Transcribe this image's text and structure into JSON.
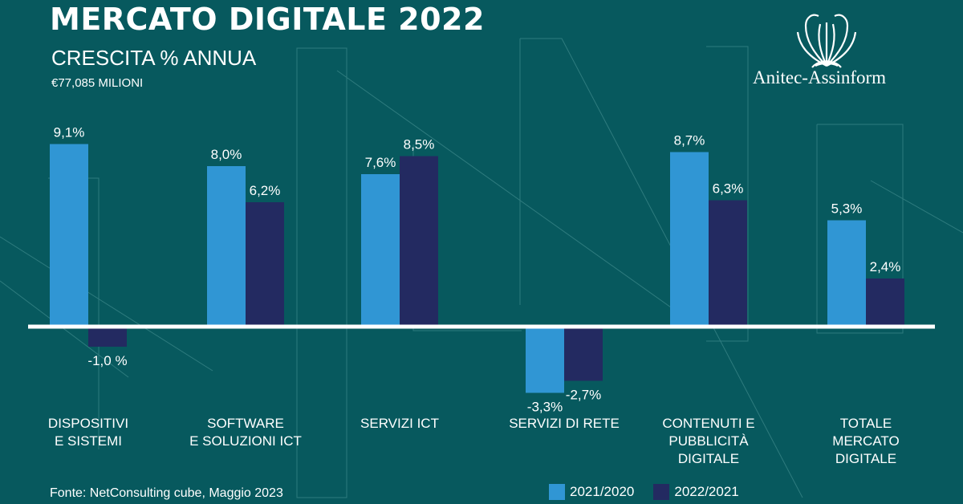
{
  "header": {
    "title": "MERCATO DIGITALE 2022",
    "subtitle": "CRESCITA % ANNUA",
    "total": "€77,085 MILIONI"
  },
  "brand": {
    "name": "Anitec-Assinform"
  },
  "source": "Fonte: NetConsulting cube, Maggio 2023",
  "colors": {
    "background": "#07595e",
    "series_2021": "#3096d4",
    "series_2022": "#232a61",
    "axis": "#ffffff"
  },
  "chart_data": {
    "type": "bar",
    "categories": [
      "DISPOSITIVI\nE SISTEMI",
      "SOFTWARE\nE SOLUZIONI ICT",
      "SERVIZI ICT",
      "SERVIZI DI RETE",
      "CONTENUTI E\nPUBBLICITÀ\nDIGITALE",
      "TOTALE\nMERCATO\nDIGITALE"
    ],
    "series": [
      {
        "name": "2021/2020",
        "values": [
          9.1,
          8.0,
          7.6,
          -3.3,
          8.7,
          5.3
        ],
        "labels": [
          "9,1%",
          "8,0%",
          "7,6%",
          "-3,3%",
          "8,7%",
          "5,3%"
        ]
      },
      {
        "name": "2022/2021",
        "values": [
          -1.0,
          6.2,
          8.5,
          -2.7,
          6.3,
          2.4
        ],
        "labels": [
          "-1,0 %",
          "6,2%",
          "8,5%",
          "-2,7%",
          "6,3%",
          "2,4%"
        ]
      }
    ],
    "ylim": [
      -5,
      10
    ],
    "legend": "bottom-right",
    "grid": false
  }
}
